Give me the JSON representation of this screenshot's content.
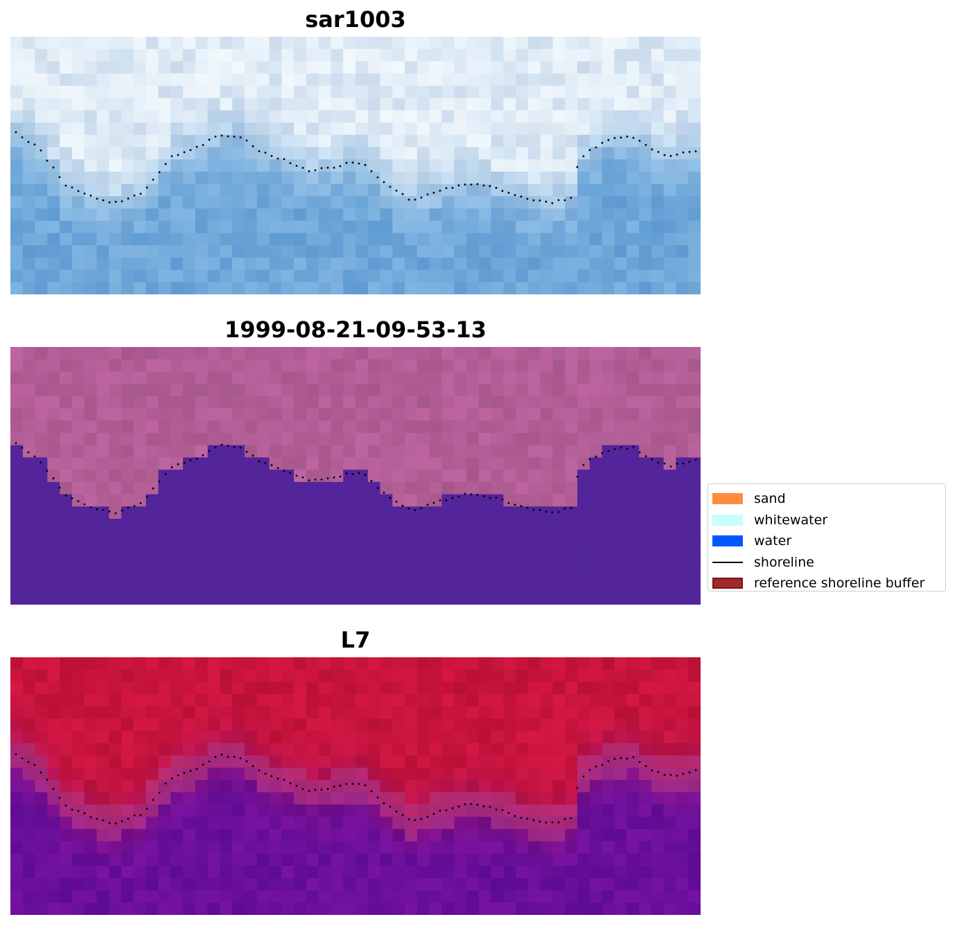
{
  "panels": [
    {
      "title": "sar1003",
      "style": "rgb"
    },
    {
      "title": "1999-08-21-09-53-13",
      "style": "classification"
    },
    {
      "title": "L7",
      "style": "index"
    }
  ],
  "legend": {
    "items": [
      {
        "label": "sand",
        "kind": "patch",
        "color": "#ff8c3c"
      },
      {
        "label": "whitewater",
        "kind": "patch",
        "color": "#c8fffa"
      },
      {
        "label": "water",
        "kind": "patch",
        "color": "#0059ff"
      },
      {
        "label": "shoreline",
        "kind": "line",
        "color": "#000000"
      },
      {
        "label": "reference shoreline buffer",
        "kind": "patch",
        "color": "#9e2a2a",
        "edge": "#7a1414"
      }
    ]
  },
  "colors": {
    "rgb_land": "#dbe8f4",
    "rgb_water": "#6ea7d9",
    "class_land": "#b25e96",
    "class_water": "#53249a",
    "index_land": "#c8143c",
    "index_water": "#6a0f9c",
    "shoreline_dots": "#000000"
  }
}
